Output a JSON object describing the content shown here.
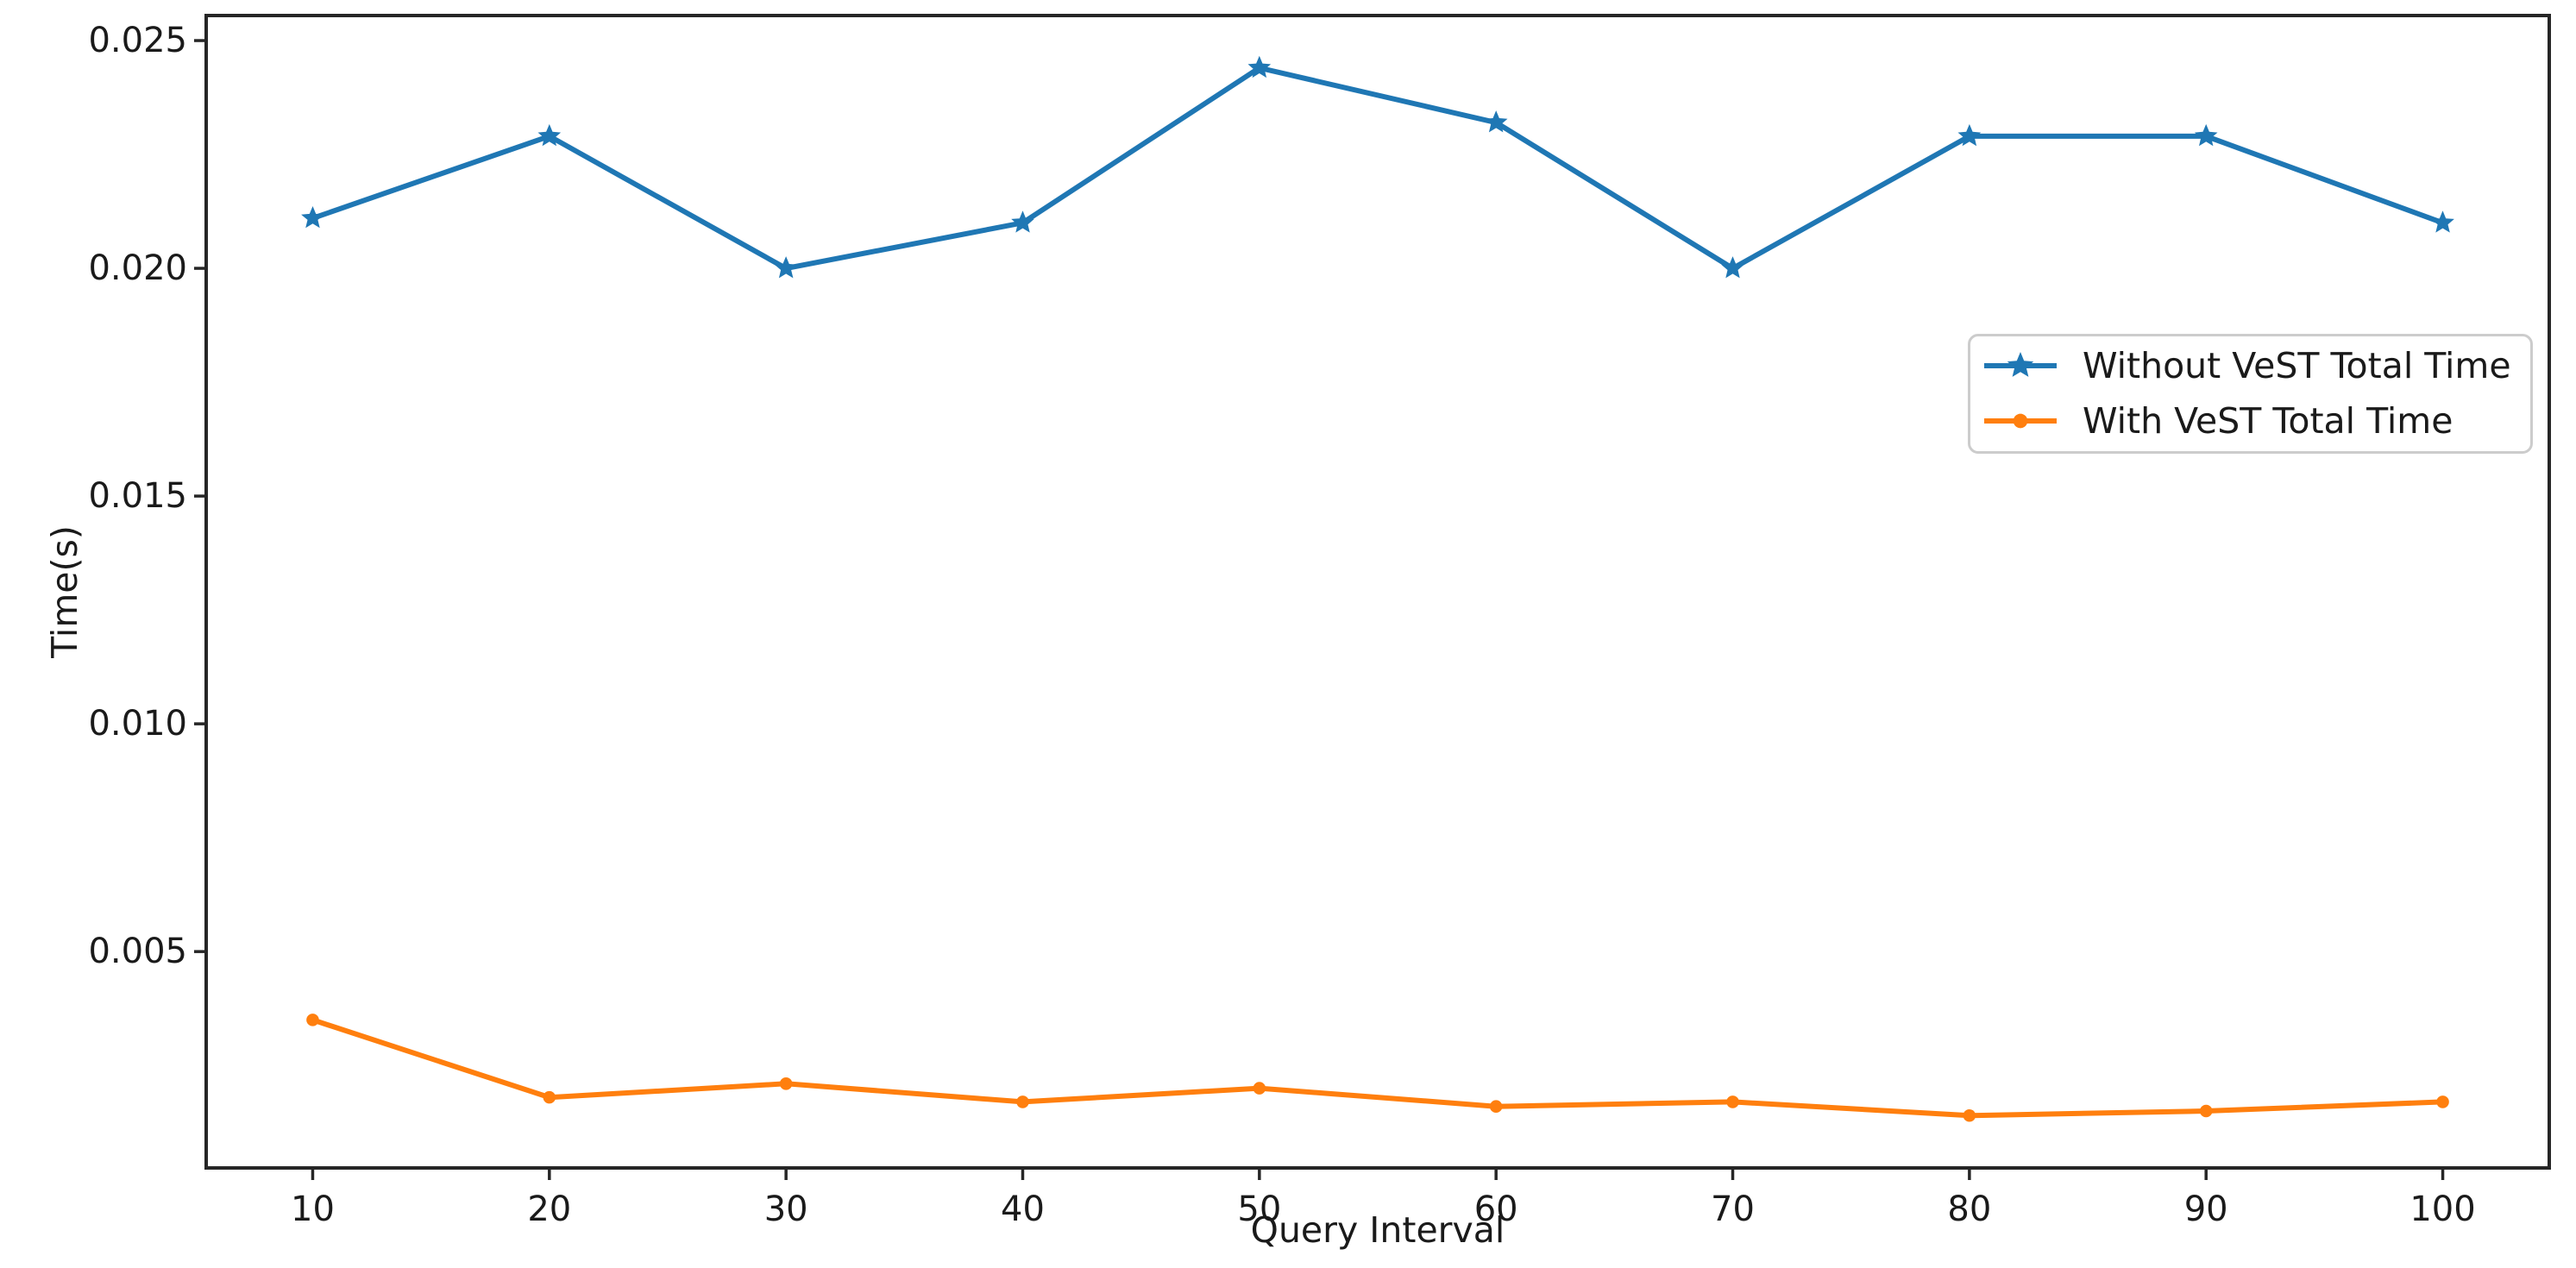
{
  "figure": {
    "background": "#ffffff"
  },
  "chart_data": {
    "type": "line",
    "title": "",
    "xlabel": "Query Interval",
    "ylabel": "Time(s)",
    "x": [
      10,
      20,
      30,
      40,
      50,
      60,
      70,
      80,
      90,
      100
    ],
    "x_tick_labels": [
      "10",
      "20",
      "30",
      "40",
      "50",
      "60",
      "70",
      "80",
      "90",
      "100"
    ],
    "y_ticks": [
      0.005,
      0.01,
      0.015,
      0.02,
      0.025
    ],
    "y_tick_labels": [
      "0.005",
      "0.010",
      "0.015",
      "0.020",
      "0.025"
    ],
    "xlim": [
      5.5,
      104.5
    ],
    "ylim": [
      0.00025,
      0.02555
    ],
    "grid": false,
    "legend_position": "inside right, upper third",
    "axis_color": "#262626",
    "text_color": "#1a1a1a",
    "legend_border_color": "#cccccc",
    "series": [
      {
        "name": "Without VeST Total Time",
        "color": "#1f77b4",
        "marker": "star",
        "values": [
          0.0211,
          0.0229,
          0.02,
          0.021,
          0.0244,
          0.0232,
          0.02,
          0.0229,
          0.0229,
          0.021
        ]
      },
      {
        "name": "With VeST Total Time",
        "color": "#ff7f0e",
        "marker": "dot",
        "values": [
          0.0035,
          0.0018,
          0.0021,
          0.0017,
          0.002,
          0.0016,
          0.0017,
          0.0014,
          0.0015,
          0.0017
        ]
      }
    ]
  }
}
